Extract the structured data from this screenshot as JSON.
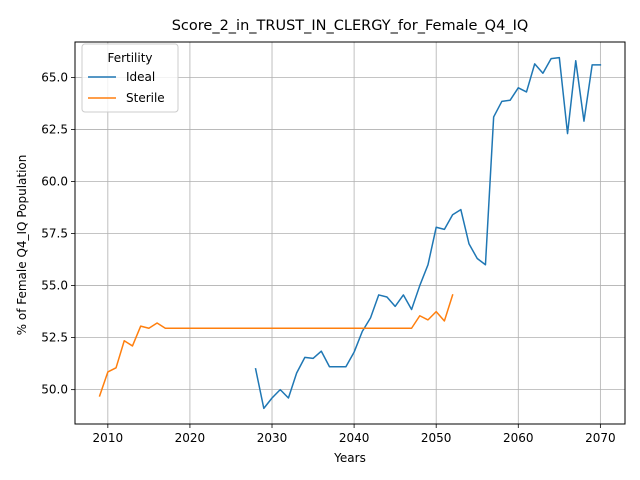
{
  "chart_data": {
    "type": "line",
    "title": "Score_2_in_TRUST_IN_CLERGY_for_Female_Q4_IQ",
    "xlabel": "Years",
    "ylabel": "% of Female Q4_IQ Population",
    "xlim": [
      2006,
      2073
    ],
    "ylim": [
      48.35,
      66.7
    ],
    "xticks": [
      2010,
      2020,
      2030,
      2040,
      2050,
      2060,
      2070
    ],
    "yticks": [
      50.0,
      52.5,
      55.0,
      57.5,
      60.0,
      62.5,
      65.0
    ],
    "xtick_labels": [
      "2010",
      "2020",
      "2030",
      "2040",
      "2050",
      "2060",
      "2070"
    ],
    "ytick_labels": [
      "50.0",
      "52.5",
      "55.0",
      "57.5",
      "60.0",
      "62.5",
      "65.0"
    ],
    "grid": true,
    "legend": {
      "title": "Fertility",
      "position": "top-left"
    },
    "series": [
      {
        "name": "Ideal",
        "color": "#1f77b4",
        "x": [
          2028,
          2029,
          2030,
          2031,
          2032,
          2033,
          2034,
          2035,
          2036,
          2037,
          2038,
          2039,
          2040,
          2041,
          2042,
          2043,
          2044,
          2045,
          2046,
          2047,
          2048,
          2049,
          2050,
          2051,
          2052,
          2053,
          2054,
          2055,
          2056,
          2057,
          2058,
          2059,
          2060,
          2061,
          2062,
          2063,
          2064,
          2065,
          2066,
          2067,
          2068,
          2069,
          2070
        ],
        "y": [
          51.0,
          49.1,
          49.6,
          50.0,
          49.6,
          50.8,
          51.55,
          51.5,
          51.85,
          51.1,
          51.1,
          51.1,
          51.8,
          52.8,
          53.45,
          54.55,
          54.45,
          54.0,
          54.55,
          53.85,
          55.0,
          56.0,
          57.8,
          57.7,
          58.4,
          58.65,
          57.0,
          56.3,
          56.0,
          63.1,
          63.85,
          63.9,
          64.5,
          64.3,
          65.65,
          65.2,
          65.9,
          65.95,
          62.3,
          65.8,
          62.9,
          65.6,
          65.6
        ]
      },
      {
        "name": "Sterile",
        "color": "#ff7f0e",
        "x": [
          2009,
          2010,
          2011,
          2012,
          2013,
          2014,
          2015,
          2016,
          2017,
          2018,
          2019,
          2020,
          2021,
          2022,
          2023,
          2024,
          2025,
          2026,
          2027,
          2028,
          2029,
          2030,
          2031,
          2032,
          2033,
          2034,
          2035,
          2036,
          2037,
          2038,
          2039,
          2040,
          2041,
          2042,
          2043,
          2044,
          2045,
          2046,
          2047,
          2048,
          2049,
          2050,
          2051,
          2052
        ],
        "y": [
          49.7,
          50.85,
          51.05,
          52.35,
          52.1,
          53.05,
          52.95,
          53.2,
          52.95,
          52.95,
          52.95,
          52.95,
          52.95,
          52.95,
          52.95,
          52.95,
          52.95,
          52.95,
          52.95,
          52.95,
          52.95,
          52.95,
          52.95,
          52.95,
          52.95,
          52.95,
          52.95,
          52.95,
          52.95,
          52.95,
          52.95,
          52.95,
          52.95,
          52.95,
          52.95,
          52.95,
          52.95,
          52.95,
          52.95,
          53.55,
          53.35,
          53.75,
          53.3,
          54.55
        ]
      }
    ]
  }
}
